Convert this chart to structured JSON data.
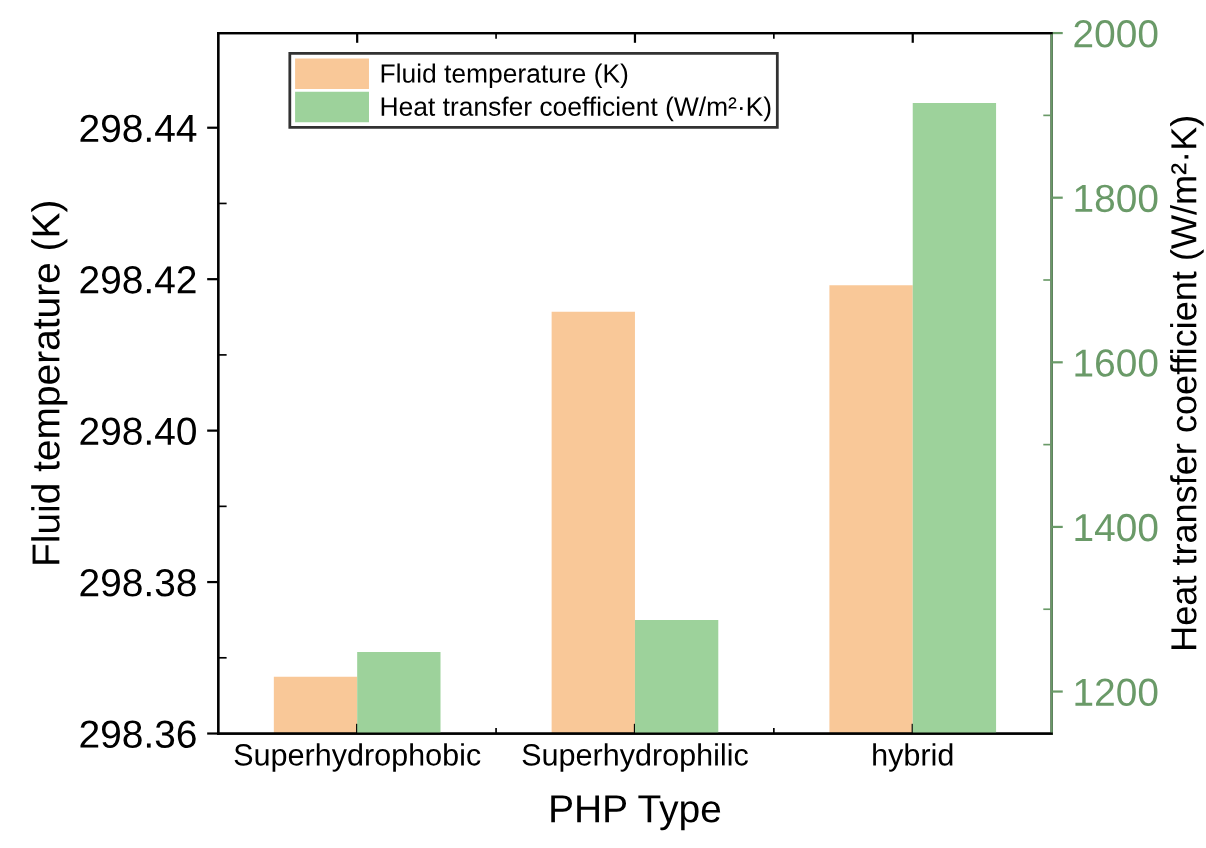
{
  "chart_data": {
    "type": "bar",
    "xlabel": "PHP Type",
    "ylabel": "Fluid temperature (K)",
    "y2label": "Heat transfer coefficient (W/m²·K)",
    "categories": [
      "Superhydrophobic",
      "Superhydrophilic",
      "hybrid"
    ],
    "series": [
      {
        "name": "Fluid temperature (K)",
        "color": "#f9c898",
        "values": [
          298.3675,
          298.4157,
          298.4192
        ]
      },
      {
        "name": "Heat transfer coefficient (W/m²·K)",
        "color": "#9dd29b",
        "values": [
          1248,
          1287,
          1915
        ],
        "axis": "y2"
      }
    ],
    "ylim": [
      298.36,
      298.4525
    ],
    "yticks": [
      {
        "value": 298.36,
        "label": "298.36"
      },
      {
        "value": 298.38,
        "label": "298.38"
      },
      {
        "value": 298.4,
        "label": "298.40"
      },
      {
        "value": 298.42,
        "label": "298.42"
      },
      {
        "value": 298.44,
        "label": "298.44"
      }
    ],
    "y2lim": [
      1149,
      2000
    ],
    "y2ticks": [
      1200,
      1400,
      1600,
      1800,
      2000
    ],
    "legend": "top left",
    "grid": false
  }
}
